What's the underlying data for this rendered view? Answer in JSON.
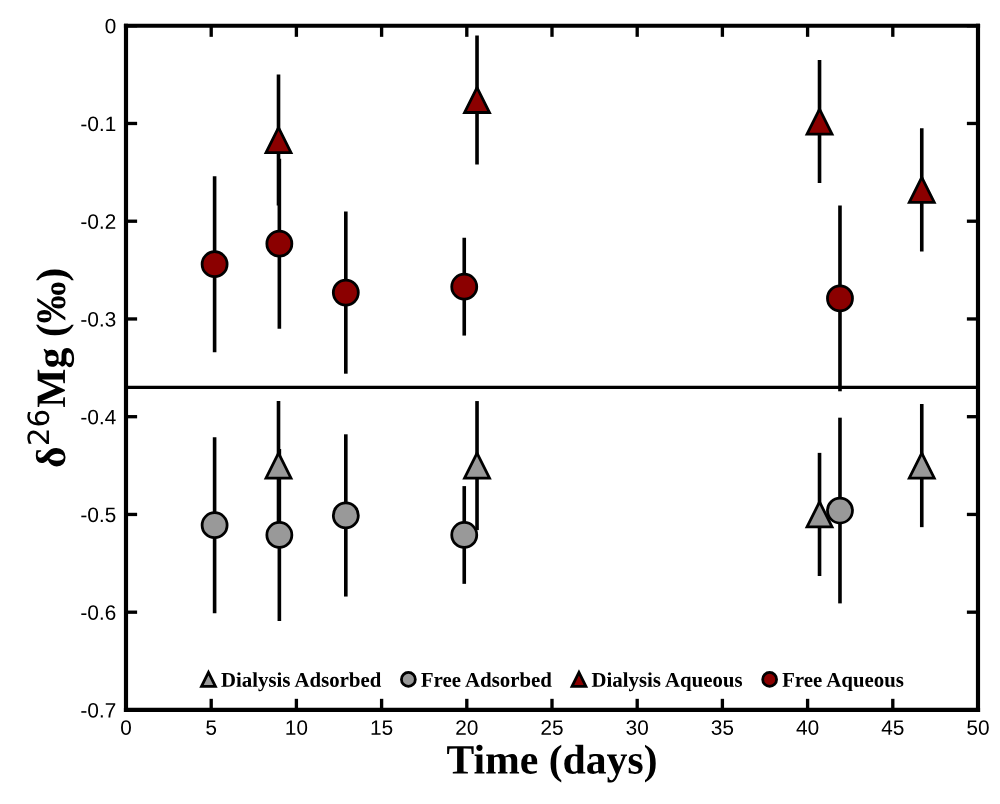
{
  "chart_data": {
    "type": "scatter",
    "xlabel": "Time (days)",
    "ylabel": "δ$^{26}$Mg (‰)",
    "xlim": [
      0,
      50
    ],
    "xticks": [
      0,
      5,
      10,
      15,
      20,
      25,
      30,
      35,
      40,
      45,
      50
    ],
    "ylim": [
      -0.7,
      0
    ],
    "yticks": [
      {
        "value": -0.7,
        "label": "-0.7"
      },
      {
        "value": -0.6,
        "label": "-0.6"
      },
      {
        "value": -0.5,
        "label": "-0.5"
      },
      {
        "value": -0.4,
        "label": "-0.4"
      },
      {
        "value": -0.3,
        "label": "-0.3"
      },
      {
        "value": -0.2,
        "label": "-0.2"
      },
      {
        "value": -0.1,
        "label": "-0.1"
      },
      0
    ],
    "grid": false,
    "legend": "bottom",
    "ref_lines": [
      {
        "axis": "y",
        "value": -0.37,
        "color": "#000000"
      }
    ],
    "series": [
      {
        "name": "Dialysis Adsorbed",
        "marker": "triangle",
        "color": "#999999",
        "x": [
          8.95,
          20.6,
          40.7,
          46.7
        ],
        "values": [
          -0.45,
          -0.45,
          -0.5,
          -0.45
        ],
        "errors": [
          0.066,
          0.066,
          0.063,
          0.063
        ]
      },
      {
        "name": "Free Adsorbed",
        "marker": "circle",
        "color": "#999999",
        "x": [
          5.2,
          9.0,
          12.9,
          19.85,
          41.9
        ],
        "values": [
          -0.511,
          -0.521,
          -0.501,
          -0.521,
          -0.496
        ],
        "errors": [
          0.09,
          0.088,
          0.083,
          0.05,
          0.095
        ]
      },
      {
        "name": "Dialysis Aqueous",
        "marker": "triangle",
        "color": "#8b0000",
        "x": [
          8.95,
          20.6,
          40.7,
          46.7
        ],
        "values": [
          -0.117,
          -0.076,
          -0.098,
          -0.168
        ],
        "errors": [
          0.067,
          0.066,
          0.063,
          0.063
        ]
      },
      {
        "name": "Free Aqueous",
        "marker": "circle",
        "color": "#8b0000",
        "x": [
          5.2,
          9.0,
          12.9,
          19.85,
          41.9
        ],
        "values": [
          -0.244,
          -0.223,
          -0.273,
          -0.267,
          -0.279
        ],
        "errors": [
          0.09,
          0.087,
          0.083,
          0.05,
          0.095
        ]
      }
    ]
  }
}
